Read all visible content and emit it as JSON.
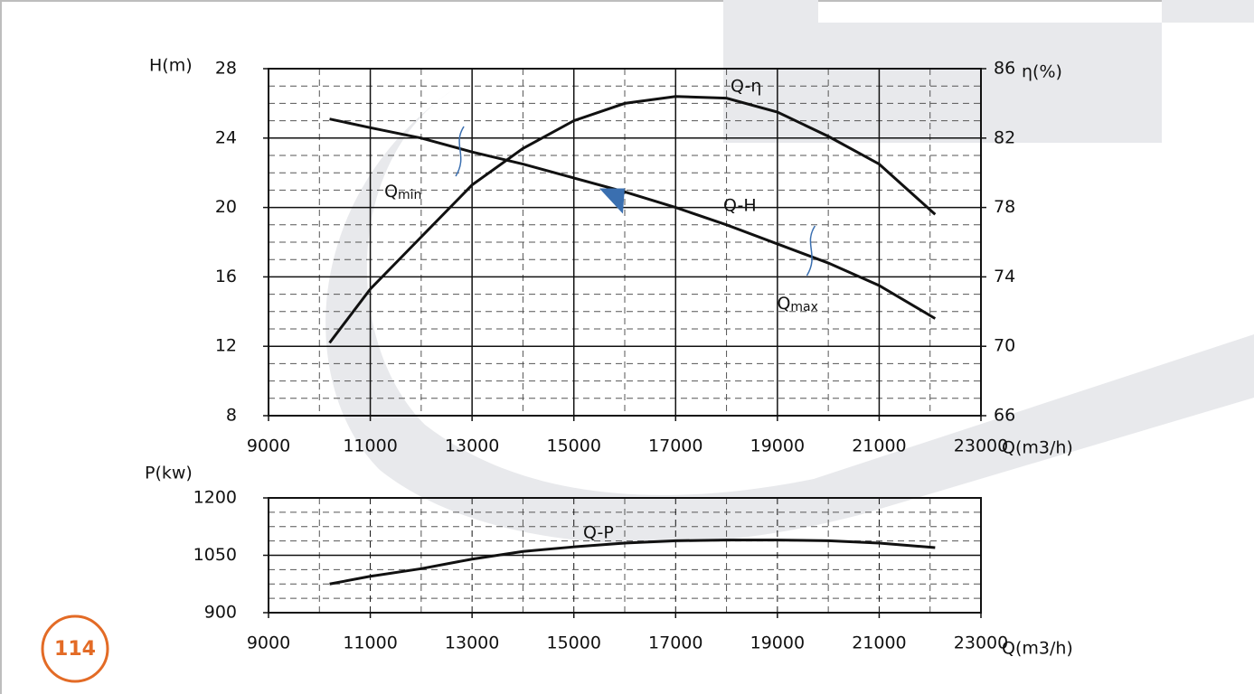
{
  "chart_data": [
    {
      "type": "line",
      "x": [
        10200,
        11000,
        12000,
        13000,
        14000,
        15000,
        16000,
        17000,
        18000,
        19000,
        20000,
        21000,
        22100
      ],
      "xlim": [
        9000,
        23000
      ],
      "xticks": [
        9000,
        11000,
        13000,
        15000,
        17000,
        19000,
        21000,
        23000
      ],
      "ylim": [
        8,
        28
      ],
      "yticks": [
        8,
        12,
        16,
        20,
        24,
        28
      ],
      "y2lim": [
        66,
        86
      ],
      "y2ticks": [
        66,
        70,
        74,
        78,
        82,
        86
      ],
      "ylabel": "H(m)",
      "y2label": "η(%)",
      "xlabel": "Q(m3/h)",
      "x_grid": "solid",
      "grid": true,
      "series": [
        {
          "name": "Q-H",
          "color": "#111111",
          "values": [
            25.1,
            24.6,
            24.0,
            23.2,
            22.5,
            21.7,
            20.9,
            20.0,
            19.0,
            17.9,
            16.8,
            15.5,
            13.6
          ]
        },
        {
          "name": "Q-η",
          "color": "#111111",
          "axis": "y2",
          "values": [
            70.2,
            73.3,
            76.3,
            79.3,
            81.4,
            83.0,
            84.0,
            84.4,
            84.3,
            83.5,
            82.1,
            80.5,
            77.6
          ]
        }
      ],
      "annotations": [
        {
          "text": "Q",
          "sub": "min",
          "x": 12750
        },
        {
          "text": "Q",
          "sub": "max",
          "x": 19650
        }
      ],
      "marker": {
        "x": 15750,
        "y": 21.1,
        "color": "#3a6fb0"
      }
    },
    {
      "type": "line",
      "x": [
        10200,
        11000,
        12000,
        13000,
        14000,
        15000,
        16000,
        17000,
        18000,
        19000,
        20000,
        21000,
        22100
      ],
      "xlim": [
        9000,
        23000
      ],
      "xticks": [
        9000,
        11000,
        13000,
        15000,
        17000,
        19000,
        21000,
        23000
      ],
      "ylim": [
        900,
        1200
      ],
      "yticks": [
        900,
        1050,
        1200
      ],
      "ylabel": "P(kw)",
      "xlabel": "Q(m3/h)",
      "x_grid": "dashed",
      "grid": true,
      "series": [
        {
          "name": "Q-P",
          "color": "#111111",
          "values": [
            975,
            995,
            1015,
            1040,
            1060,
            1072,
            1082,
            1088,
            1090,
            1090,
            1088,
            1082,
            1070
          ]
        }
      ]
    }
  ],
  "page_number": 114
}
